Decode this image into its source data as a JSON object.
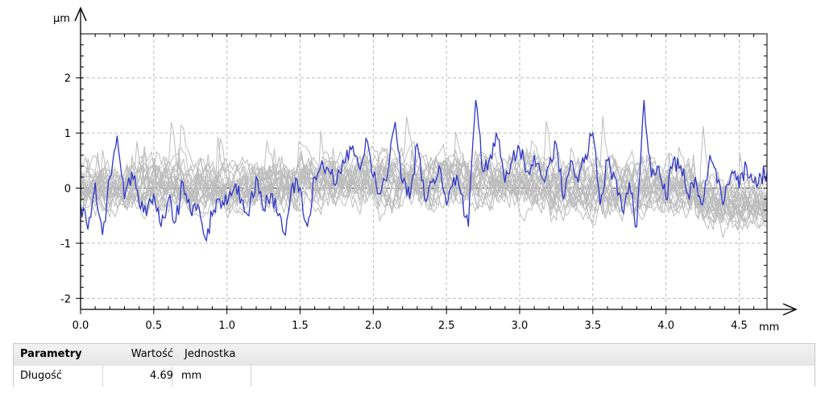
{
  "chart_data": {
    "type": "line",
    "x_unit": "mm",
    "y_unit": "µm",
    "xlim": [
      0,
      4.69
    ],
    "ylim": [
      -2.2,
      2.8
    ],
    "x_ticks": [
      0.0,
      0.5,
      1.0,
      1.5,
      2.0,
      2.5,
      3.0,
      3.5,
      4.0,
      4.5
    ],
    "x_tick_labels": [
      "0.0",
      "0.5",
      "1.0",
      "1.5",
      "2.0",
      "2.5",
      "3.0",
      "3.5",
      "4.0",
      "4.5"
    ],
    "y_ticks": [
      -2,
      -1,
      0,
      1,
      2
    ],
    "y_tick_labels": [
      "-2",
      "-1",
      "0",
      "1",
      "2"
    ],
    "grid": true,
    "zero_line": true,
    "background_series_color": "#bdbdbd",
    "highlight_series_color": "#2f35c8",
    "background_series_count": 22,
    "highlight_series": {
      "x": [
        0.0,
        0.05,
        0.1,
        0.15,
        0.2,
        0.25,
        0.3,
        0.35,
        0.4,
        0.45,
        0.5,
        0.55,
        0.6,
        0.65,
        0.7,
        0.75,
        0.8,
        0.85,
        0.9,
        0.95,
        1.0,
        1.05,
        1.1,
        1.15,
        1.2,
        1.25,
        1.3,
        1.35,
        1.4,
        1.45,
        1.5,
        1.55,
        1.6,
        1.65,
        1.7,
        1.75,
        1.8,
        1.85,
        1.9,
        1.95,
        2.0,
        2.05,
        2.1,
        2.15,
        2.2,
        2.25,
        2.3,
        2.35,
        2.4,
        2.45,
        2.5,
        2.55,
        2.6,
        2.65,
        2.7,
        2.75,
        2.8,
        2.85,
        2.9,
        2.95,
        3.0,
        3.05,
        3.1,
        3.15,
        3.2,
        3.25,
        3.3,
        3.35,
        3.4,
        3.45,
        3.5,
        3.55,
        3.6,
        3.65,
        3.7,
        3.75,
        3.8,
        3.85,
        3.9,
        3.95,
        4.0,
        4.05,
        4.1,
        4.15,
        4.2,
        4.25,
        4.3,
        4.35,
        4.4,
        4.45,
        4.5,
        4.55,
        4.6,
        4.65,
        4.69
      ],
      "y": [
        -0.3,
        -0.75,
        0.1,
        -0.85,
        0.2,
        0.95,
        -0.2,
        0.3,
        -0.3,
        -0.5,
        -0.1,
        -0.7,
        -0.2,
        -0.6,
        0.1,
        -0.4,
        -0.3,
        -0.9,
        -0.5,
        -0.2,
        -0.3,
        0.0,
        -0.2,
        -0.5,
        0.2,
        -0.4,
        -0.1,
        -0.5,
        -0.85,
        0.1,
        0.0,
        -0.7,
        0.2,
        0.5,
        0.3,
        0.1,
        0.45,
        0.7,
        0.4,
        0.9,
        0.2,
        -0.1,
        0.3,
        1.2,
        0.1,
        -0.2,
        0.8,
        -0.2,
        0.1,
        0.4,
        -0.3,
        0.2,
        -0.1,
        -0.7,
        1.6,
        0.3,
        0.6,
        0.9,
        0.1,
        0.5,
        0.7,
        0.3,
        0.6,
        0.2,
        0.4,
        0.8,
        -0.2,
        0.5,
        0.1,
        0.6,
        1.0,
        -0.3,
        0.5,
        0.2,
        -0.4,
        0.1,
        -0.7,
        1.6,
        0.2,
        0.4,
        -0.2,
        0.5,
        0.4,
        -0.1,
        0.2,
        -0.3,
        0.6,
        0.1,
        -0.2,
        0.3,
        0.0,
        0.4,
        0.1,
        0.2,
        0.3
      ]
    }
  },
  "table": {
    "headers": {
      "param": "Parametry",
      "value": "Wartość",
      "unit": "Jednostka"
    },
    "rows": [
      {
        "param": "Długość",
        "value": "4.69",
        "unit": "mm"
      }
    ]
  }
}
